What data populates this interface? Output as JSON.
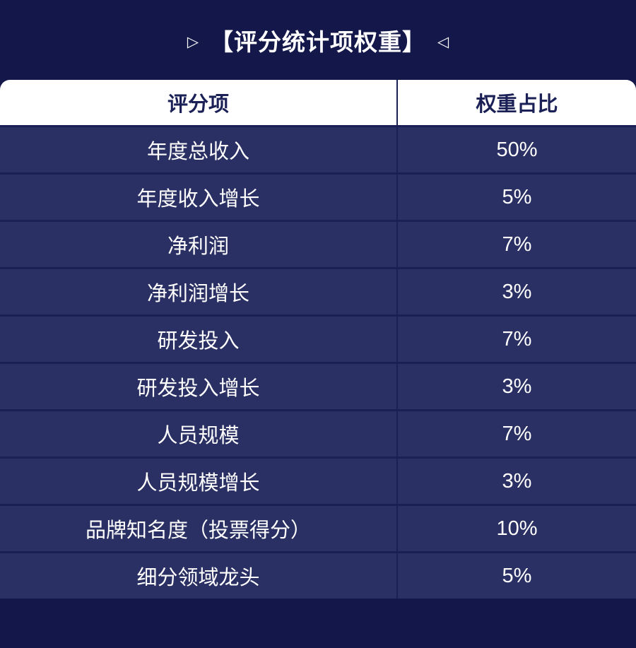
{
  "title": {
    "left_marker": "▷",
    "text": "【评分统计项权重】",
    "right_marker": "◁"
  },
  "table": {
    "headers": [
      "评分项",
      "权重占比"
    ],
    "rows": [
      {
        "item": "年度总收入",
        "weight": "50%"
      },
      {
        "item": "年度收入增长",
        "weight": "5%"
      },
      {
        "item": "净利润",
        "weight": "7%"
      },
      {
        "item": "净利润增长",
        "weight": "3%"
      },
      {
        "item": "研发投入",
        "weight": "7%"
      },
      {
        "item": "研发投入增长",
        "weight": "3%"
      },
      {
        "item": "人员规模",
        "weight": "7%"
      },
      {
        "item": "人员规模增长",
        "weight": "3%"
      },
      {
        "item": "品牌知名度（投票得分）",
        "weight": "10%"
      },
      {
        "item": "细分领域龙头",
        "weight": "5%"
      }
    ]
  },
  "colors": {
    "page_background": "#13174a",
    "row_background": "#2a3063",
    "separator": "#1a1f55",
    "header_background": "#ffffff",
    "header_text": "#1b2056",
    "body_text": "#ffffff"
  },
  "chart_data": {
    "type": "table",
    "title": "【评分统计项权重】",
    "columns": [
      "评分项",
      "权重占比"
    ],
    "rows": [
      [
        "年度总收入",
        "50%"
      ],
      [
        "年度收入增长",
        "5%"
      ],
      [
        "净利润",
        "7%"
      ],
      [
        "净利润增长",
        "3%"
      ],
      [
        "研发投入",
        "7%"
      ],
      [
        "研发投入增长",
        "3%"
      ],
      [
        "人员规模",
        "7%"
      ],
      [
        "人员规模增长",
        "3%"
      ],
      [
        "品牌知名度（投票得分）",
        "10%"
      ],
      [
        "细分领域龙头",
        "5%"
      ]
    ],
    "values_percent": [
      50,
      5,
      7,
      3,
      7,
      3,
      7,
      3,
      10,
      5
    ]
  }
}
